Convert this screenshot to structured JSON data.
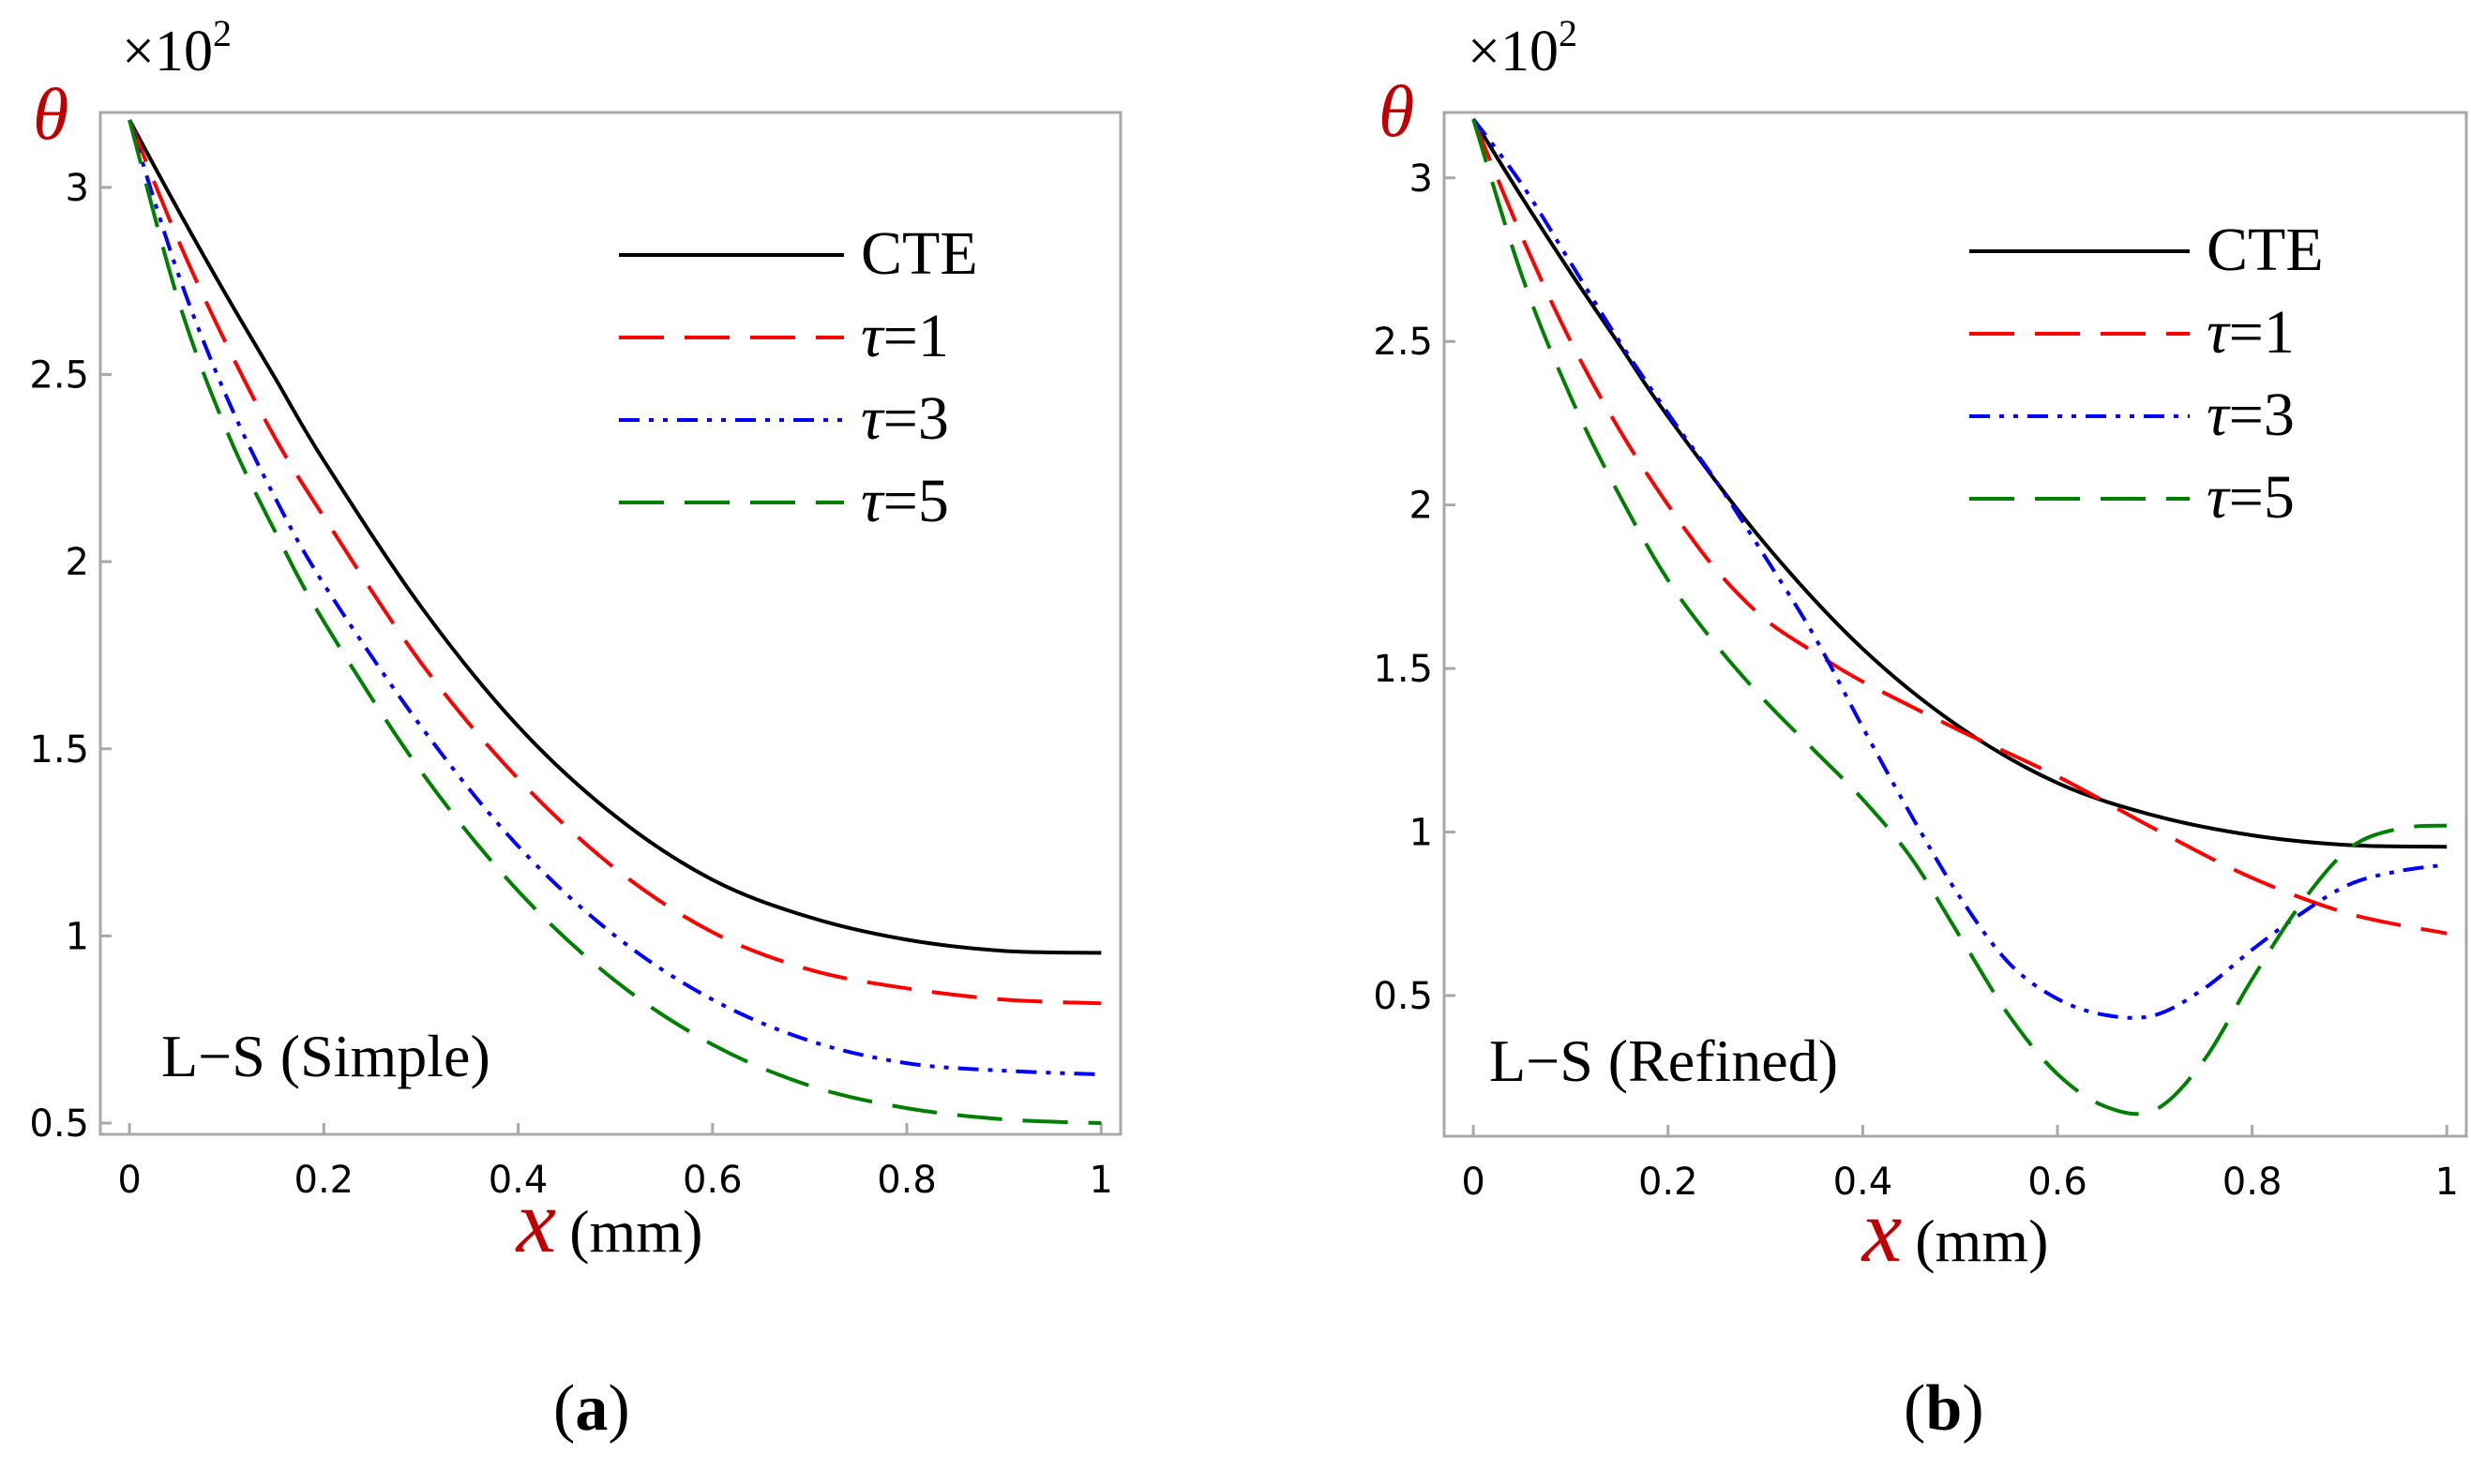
{
  "panels": [
    {
      "caption_letter": "a",
      "multiplier": "×10",
      "multiplier_exp": "2",
      "y_symbol": "θ",
      "x_symbol": "x",
      "x_unit": "(mm)",
      "annotation": "L−S (Simple)",
      "chart_data": {
        "type": "line",
        "xlabel": "x (mm)",
        "ylabel": "θ (×10^2)",
        "xlim": [
          -0.03,
          1.02
        ],
        "ylim": [
          0.47,
          3.2
        ],
        "xticks": [
          0,
          0.2,
          0.4,
          0.6,
          0.8,
          1
        ],
        "xtick_labels": [
          "0",
          "0.2",
          "0.4",
          "0.6",
          "0.8",
          "1"
        ],
        "yticks": [
          0.5,
          1,
          1.5,
          2,
          2.5,
          3
        ],
        "ytick_labels": [
          "0.5",
          "1",
          "1.5",
          "2",
          "2.5",
          "3"
        ],
        "legend_position": "top-right",
        "series": [
          {
            "name": "CTE",
            "label_parts": [
              "CTE"
            ],
            "color": "#000000",
            "dash": "solid",
            "x": [
              0,
              0.05,
              0.1,
              0.15,
              0.2,
              0.3,
              0.4,
              0.5,
              0.6,
              0.7,
              0.8,
              0.9,
              1
            ],
            "y": [
              3.18,
              2.94,
              2.71,
              2.49,
              2.27,
              1.88,
              1.56,
              1.32,
              1.15,
              1.05,
              0.99,
              0.96,
              0.955
            ]
          },
          {
            "name": "τ=1",
            "label_parts": [
              "τ",
              "=1"
            ],
            "color": "#ff0000",
            "dash": "longdash",
            "x": [
              0,
              0.05,
              0.1,
              0.15,
              0.2,
              0.3,
              0.4,
              0.5,
              0.6,
              0.7,
              0.8,
              0.9,
              1
            ],
            "y": [
              3.18,
              2.86,
              2.58,
              2.33,
              2.12,
              1.73,
              1.42,
              1.18,
              1.01,
              0.91,
              0.86,
              0.83,
              0.82
            ]
          },
          {
            "name": "τ=3",
            "label_parts": [
              "τ",
              "=3"
            ],
            "color": "#0000ff",
            "dash": "dashdotdot",
            "x": [
              0,
              0.05,
              0.1,
              0.15,
              0.2,
              0.3,
              0.4,
              0.5,
              0.6,
              0.7,
              0.8,
              0.9,
              1
            ],
            "y": [
              3.18,
              2.77,
              2.44,
              2.17,
              1.94,
              1.56,
              1.24,
              1.0,
              0.83,
              0.72,
              0.66,
              0.64,
              0.63
            ]
          },
          {
            "name": "τ=5",
            "label_parts": [
              "τ",
              "=5"
            ],
            "color": "#008000",
            "dash": "longdash",
            "x": [
              0,
              0.05,
              0.1,
              0.15,
              0.2,
              0.3,
              0.4,
              0.5,
              0.6,
              0.7,
              0.8,
              0.9,
              1
            ],
            "y": [
              3.18,
              2.7,
              2.35,
              2.08,
              1.84,
              1.44,
              1.12,
              0.88,
              0.71,
              0.6,
              0.54,
              0.51,
              0.5
            ]
          }
        ]
      }
    },
    {
      "caption_letter": "b",
      "multiplier": "×10",
      "multiplier_exp": "2",
      "y_symbol": "θ",
      "x_symbol": "x",
      "x_unit": "(mm)",
      "annotation": "L−S (Refined)",
      "chart_data": {
        "type": "line",
        "xlabel": "x (mm)",
        "ylabel": "θ (×10^2)",
        "xlim": [
          -0.03,
          1.02
        ],
        "ylim": [
          0.07,
          3.2
        ],
        "xticks": [
          0,
          0.2,
          0.4,
          0.6,
          0.8,
          1
        ],
        "xtick_labels": [
          "0",
          "0.2",
          "0.4",
          "0.6",
          "0.8",
          "1"
        ],
        "yticks": [
          0.5,
          1,
          1.5,
          2,
          2.5,
          3
        ],
        "ytick_labels": [
          "0.5",
          "1",
          "1.5",
          "2",
          "2.5",
          "3"
        ],
        "legend_position": "top-right",
        "series": [
          {
            "name": "CTE",
            "label_parts": [
              "CTE"
            ],
            "color": "#000000",
            "dash": "solid",
            "x": [
              0,
              0.05,
              0.1,
              0.15,
              0.2,
              0.3,
              0.4,
              0.5,
              0.6,
              0.7,
              0.8,
              0.9,
              1
            ],
            "y": [
              3.18,
              2.94,
              2.71,
              2.49,
              2.27,
              1.88,
              1.56,
              1.32,
              1.15,
              1.05,
              0.99,
              0.96,
              0.955
            ]
          },
          {
            "name": "τ=1",
            "label_parts": [
              "τ",
              "=1"
            ],
            "color": "#ff0000",
            "dash": "longdash",
            "x": [
              0,
              0.05,
              0.1,
              0.15,
              0.2,
              0.25,
              0.3,
              0.35,
              0.4,
              0.5,
              0.6,
              0.7,
              0.8,
              0.9,
              1
            ],
            "y": [
              3.18,
              2.82,
              2.5,
              2.23,
              2.0,
              1.8,
              1.65,
              1.55,
              1.46,
              1.31,
              1.17,
              1.01,
              0.86,
              0.75,
              0.69
            ]
          },
          {
            "name": "τ=3",
            "label_parts": [
              "τ",
              "=3"
            ],
            "color": "#0000ff",
            "dash": "dashdotdot",
            "x": [
              0,
              0.05,
              0.1,
              0.15,
              0.2,
              0.25,
              0.3,
              0.35,
              0.4,
              0.45,
              0.5,
              0.55,
              0.6,
              0.65,
              0.7,
              0.75,
              0.8,
              0.85,
              0.9,
              0.95,
              1
            ],
            "y": [
              3.18,
              2.98,
              2.74,
              2.5,
              2.28,
              2.07,
              1.84,
              1.6,
              1.32,
              1.05,
              0.8,
              0.6,
              0.49,
              0.44,
              0.44,
              0.52,
              0.64,
              0.75,
              0.84,
              0.88,
              0.9
            ]
          },
          {
            "name": "τ=5",
            "label_parts": [
              "τ",
              "=5"
            ],
            "color": "#008000",
            "dash": "longdash",
            "x": [
              0,
              0.05,
              0.1,
              0.15,
              0.2,
              0.25,
              0.3,
              0.35,
              0.4,
              0.45,
              0.5,
              0.55,
              0.6,
              0.65,
              0.7,
              0.75,
              0.8,
              0.85,
              0.9,
              0.95,
              1
            ],
            "y": [
              3.18,
              2.7,
              2.33,
              2.03,
              1.77,
              1.57,
              1.4,
              1.25,
              1.1,
              0.92,
              0.68,
              0.44,
              0.26,
              0.16,
              0.15,
              0.3,
              0.55,
              0.78,
              0.95,
              1.01,
              1.02
            ]
          }
        ]
      }
    }
  ]
}
